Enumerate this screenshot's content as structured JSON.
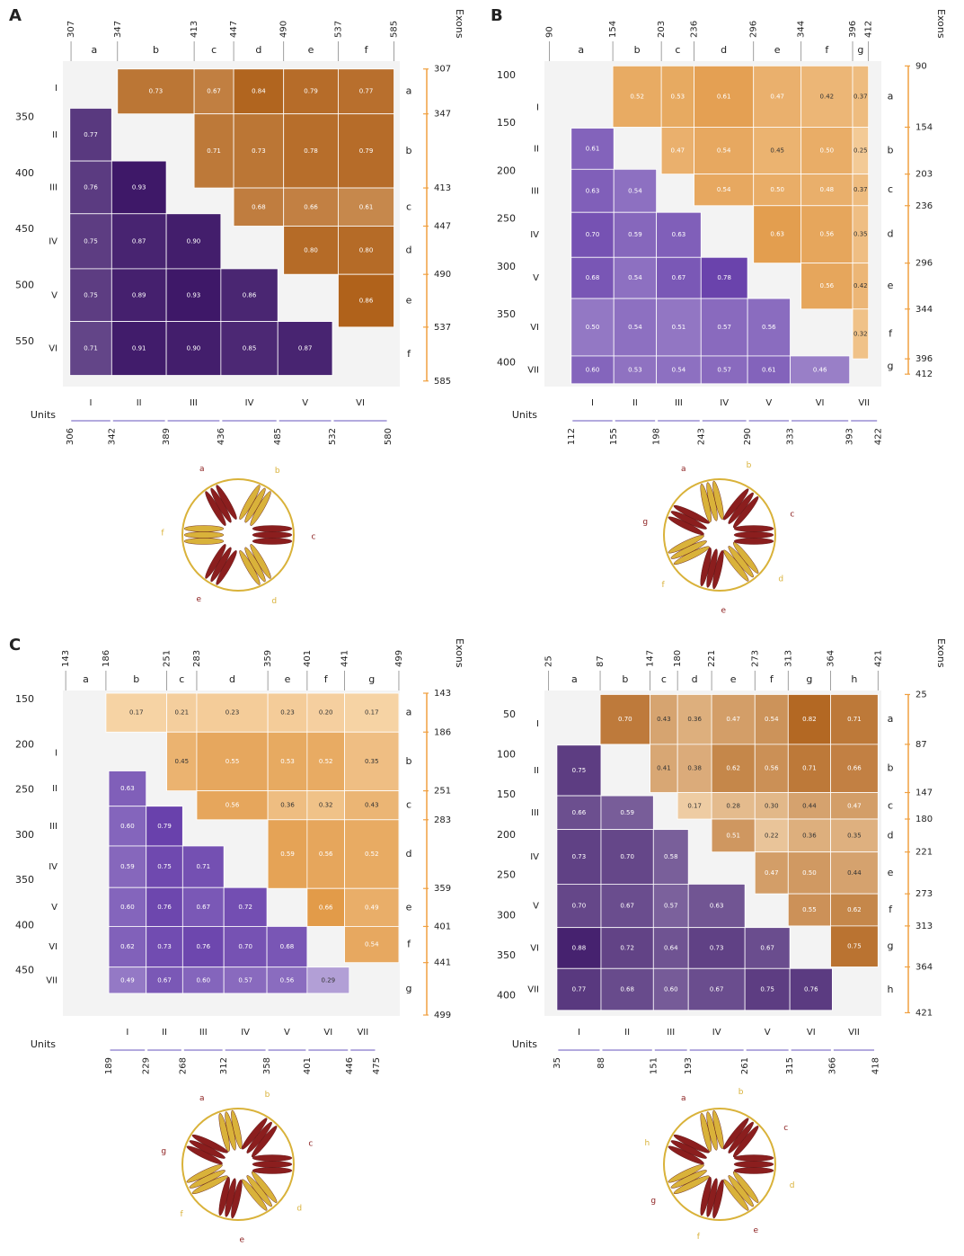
{
  "chart_data": [
    {
      "type": "heatmap",
      "panel": "A",
      "xlim": [
        300,
        590
      ],
      "ylim": [
        300,
        590
      ],
      "yticks": [
        350,
        400,
        450,
        500,
        550
      ],
      "exons": {
        "title": "Exons",
        "labels": [
          "a",
          "b",
          "c",
          "d",
          "e",
          "f"
        ],
        "boundaries": [
          307,
          347,
          413,
          447,
          490,
          537,
          585
        ],
        "values": [
          [
            0.73,
            0.67,
            0.84,
            0.79,
            0.77
          ],
          [
            0.71,
            0.73,
            0.78,
            0.79
          ],
          [
            0.68,
            0.66,
            0.61
          ],
          [
            0.8,
            0.8
          ],
          [
            0.86
          ]
        ],
        "value_labels": [
          [
            "0.73",
            "0.67",
            "0.84",
            "0.79",
            "0.77"
          ],
          [
            "0.71",
            "0.73",
            "0.78",
            "0.79"
          ],
          [
            "0.68",
            "0.66",
            "0.61"
          ],
          [
            "0.80",
            "0.80"
          ],
          [
            "0.86"
          ]
        ],
        "colors": [
          "#fde6c4",
          "#a34c00"
        ]
      },
      "units": {
        "title": "Units",
        "labels": [
          "I",
          "II",
          "III",
          "IV",
          "V",
          "VI"
        ],
        "boundaries": [
          306,
          342,
          389,
          436,
          485,
          532,
          580
        ],
        "values": [
          [
            0.77
          ],
          [
            0.76,
            0.93
          ],
          [
            0.75,
            0.87,
            0.9
          ],
          [
            0.75,
            0.89,
            0.93,
            0.86
          ],
          [
            0.71,
            0.91,
            0.9,
            0.85,
            0.87
          ]
        ],
        "value_labels": [
          [
            "0.77"
          ],
          [
            "0.76",
            "0.93"
          ],
          [
            "0.75",
            "0.87",
            "0.90"
          ],
          [
            "0.75",
            "0.89",
            "0.93",
            "0.86"
          ],
          [
            "0.71",
            "0.91",
            "0.90",
            "0.85",
            "0.87"
          ]
        ],
        "colors": [
          "#dcd5ee",
          "#320a5e"
        ]
      },
      "structure_colors": [
        "#8b1e1e",
        "#d9b23a"
      ]
    },
    {
      "type": "heatmap",
      "panel": "B",
      "xlim": [
        85,
        425
      ],
      "ylim": [
        85,
        425
      ],
      "yticks": [
        100,
        150,
        200,
        250,
        300,
        350,
        400
      ],
      "exons": {
        "title": "Exons",
        "labels": [
          "a",
          "b",
          "c",
          "d",
          "e",
          "f",
          "g"
        ],
        "boundaries": [
          90,
          154,
          203,
          236,
          296,
          344,
          396,
          412
        ],
        "values": [
          [
            0.52,
            0.53,
            0.61,
            0.47,
            0.42,
            0.37
          ],
          [
            0.47,
            0.54,
            0.45,
            0.5,
            0.25
          ],
          [
            0.54,
            0.5,
            0.48,
            0.37
          ],
          [
            0.63,
            0.56,
            0.35
          ],
          [
            0.56,
            0.42
          ],
          [
            0.32
          ]
        ],
        "value_labels": [
          [
            "0.52",
            "0.53",
            "0.61",
            "0.47",
            "0.42",
            "0.37"
          ],
          [
            "0.47",
            "0.54",
            "0.45",
            "0.50",
            "0.25"
          ],
          [
            "0.54",
            "0.50",
            "0.48",
            "0.37"
          ],
          [
            "0.63",
            "0.56",
            "0.35"
          ],
          [
            "0.56",
            "0.42"
          ],
          [
            "0.32"
          ]
        ],
        "colors": [
          "#fde6c4",
          "#d4740a"
        ]
      },
      "units": {
        "title": "Units",
        "labels": [
          "I",
          "II",
          "III",
          "IV",
          "V",
          "VI",
          "VII"
        ],
        "boundaries": [
          112,
          155,
          198,
          243,
          290,
          333,
          393,
          422
        ],
        "values": [
          [
            0.61
          ],
          [
            0.63,
            0.54
          ],
          [
            0.7,
            0.59,
            0.63
          ],
          [
            0.68,
            0.54,
            0.67,
            0.78
          ],
          [
            0.5,
            0.54,
            0.51,
            0.57,
            0.56
          ],
          [
            0.6,
            0.53,
            0.54,
            0.57,
            0.61,
            0.46
          ]
        ],
        "value_labels": [
          [
            "0.61"
          ],
          [
            "0.63",
            "0.54"
          ],
          [
            "0.70",
            "0.59",
            "0.63"
          ],
          [
            "0.68",
            "0.54",
            "0.67",
            "0.78"
          ],
          [
            "0.50",
            "0.54",
            "0.51",
            "0.57",
            "0.56"
          ],
          [
            "0.60",
            "0.53",
            "0.54",
            "0.57",
            "0.61",
            "0.46"
          ]
        ],
        "colors": [
          "#dcd5ee",
          "#4a1a9a"
        ]
      },
      "structure_colors": [
        "#8b1e1e",
        "#d9b23a"
      ]
    },
    {
      "type": "heatmap",
      "panel": "C",
      "xlim": [
        140,
        500
      ],
      "ylim": [
        140,
        500
      ],
      "yticks": [
        150,
        200,
        250,
        300,
        350,
        400,
        450
      ],
      "exons": {
        "title": "Exons",
        "labels": [
          "a",
          "b",
          "c",
          "d",
          "e",
          "f",
          "g"
        ],
        "boundaries": [
          143,
          186,
          251,
          283,
          359,
          401,
          441,
          499
        ],
        "values": [
          [
            0.17,
            0.21,
            0.23,
            0.23,
            0.2,
            0.17
          ],
          [
            0.45,
            0.55,
            0.53,
            0.52,
            0.35
          ],
          [
            0.56,
            0.36,
            0.32,
            0.43
          ],
          [
            0.59,
            0.56,
            0.52
          ],
          [
            0.66,
            0.49
          ],
          [
            0.54
          ]
        ],
        "value_labels": [
          [
            "0.17",
            "0.21",
            "0.23",
            "0.23",
            "0.20",
            "0.17"
          ],
          [
            "0.45",
            "0.55",
            "0.53",
            "0.52",
            "0.35"
          ],
          [
            "0.56",
            "0.36",
            "0.32",
            "0.43"
          ],
          [
            "0.59",
            "0.56",
            "0.52"
          ],
          [
            "0.66",
            "0.49"
          ],
          [
            "0.54"
          ]
        ],
        "colors": [
          "#fde6c4",
          "#d4740a"
        ]
      },
      "units": {
        "title": "Units",
        "labels": [
          "I",
          "II",
          "III",
          "IV",
          "V",
          "VI",
          "VII"
        ],
        "boundaries": [
          189,
          229,
          268,
          312,
          358,
          401,
          446,
          475
        ],
        "values": [
          [
            0.63
          ],
          [
            0.6,
            0.79
          ],
          [
            0.59,
            0.75,
            0.71
          ],
          [
            0.6,
            0.76,
            0.67,
            0.72
          ],
          [
            0.62,
            0.73,
            0.76,
            0.7,
            0.68
          ],
          [
            0.49,
            0.67,
            0.6,
            0.57,
            0.56,
            0.29
          ]
        ],
        "value_labels": [
          [
            "0.63"
          ],
          [
            "0.60",
            "0.79"
          ],
          [
            "0.59",
            "0.75",
            "0.71"
          ],
          [
            "0.60",
            "0.76",
            "0.67",
            "0.72"
          ],
          [
            "0.62",
            "0.73",
            "0.76",
            "0.70",
            "0.68"
          ],
          [
            "0.49",
            "0.67",
            "0.60",
            "0.57",
            "0.56",
            "0.29"
          ]
        ],
        "colors": [
          "#dcd5ee",
          "#4a1a9a"
        ]
      },
      "structure_colors": [
        "#8b1e1e",
        "#d9b23a"
      ]
    },
    {
      "type": "heatmap",
      "xlim": [
        20,
        425
      ],
      "ylim": [
        20,
        425
      ],
      "yticks": [
        50,
        100,
        150,
        200,
        250,
        300,
        350,
        400
      ],
      "exons": {
        "title": "Exons",
        "labels": [
          "a",
          "b",
          "c",
          "d",
          "e",
          "f",
          "g",
          "h"
        ],
        "boundaries": [
          25,
          87,
          147,
          180,
          221,
          273,
          313,
          364,
          421
        ],
        "values": [
          [
            0.7,
            0.43,
            0.36,
            0.47,
            0.54,
            0.82,
            0.71
          ],
          [
            0.41,
            0.38,
            0.62,
            0.56,
            0.71,
            0.66
          ],
          [
            0.17,
            0.28,
            0.3,
            0.44,
            0.47
          ],
          [
            0.51,
            0.22,
            0.36,
            0.35
          ],
          [
            0.47,
            0.5,
            0.44
          ],
          [
            0.55,
            0.62
          ],
          [
            0.75
          ]
        ],
        "value_labels": [
          [
            "0.70",
            "0.43",
            "0.36",
            "0.47",
            "0.54",
            "0.82",
            "0.71"
          ],
          [
            "0.41",
            "0.38",
            "0.62",
            "0.56",
            "0.71",
            "0.66"
          ],
          [
            "0.17",
            "0.28",
            "0.30",
            "0.44",
            "0.47"
          ],
          [
            "0.51",
            "0.22",
            "0.36",
            "0.35"
          ],
          [
            "0.47",
            "0.50",
            "0.44"
          ],
          [
            "0.55",
            "0.62"
          ],
          [
            "0.75"
          ]
        ],
        "colors": [
          "#fde6c4",
          "#a34c00"
        ]
      },
      "units": {
        "title": "Units",
        "labels": [
          "I",
          "II",
          "III",
          "IV",
          "V",
          "VI",
          "VII"
        ],
        "boundaries": [
          35,
          88,
          151,
          193,
          261,
          315,
          366,
          418
        ],
        "values": [
          [
            0.75
          ],
          [
            0.66,
            0.59
          ],
          [
            0.73,
            0.7,
            0.58
          ],
          [
            0.7,
            0.67,
            0.57,
            0.63
          ],
          [
            0.88,
            0.72,
            0.64,
            0.73,
            0.67
          ],
          [
            0.77,
            0.68,
            0.6,
            0.67,
            0.75,
            0.76
          ]
        ],
        "value_labels": [
          [
            "0.75"
          ],
          [
            "0.66",
            "0.59"
          ],
          [
            "0.73",
            "0.70",
            "0.58"
          ],
          [
            "0.70",
            "0.67",
            "0.57",
            "0.63"
          ],
          [
            "0.88",
            "0.72",
            "0.64",
            "0.73",
            "0.67"
          ],
          [
            "0.77",
            "0.68",
            "0.60",
            "0.67",
            "0.75",
            "0.76"
          ]
        ],
        "colors": [
          "#dcd5ee",
          "#320a5e"
        ]
      },
      "structure_colors": [
        "#8b1e1e",
        "#d9b23a"
      ]
    }
  ]
}
